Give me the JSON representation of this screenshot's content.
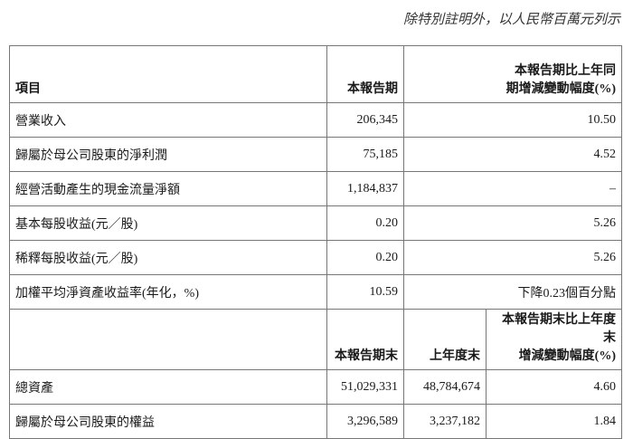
{
  "note": "除特別註明外，以人民幣百萬元列示",
  "header1": {
    "item": "項目",
    "current": "本報告期",
    "change": [
      "本報告期比上年同",
      "期增減變動幅度(%)"
    ]
  },
  "rows1": [
    {
      "item": "營業收入",
      "current": "206,345",
      "change": "10.50"
    },
    {
      "item": "歸屬於母公司股東的淨利潤",
      "current": "75,185",
      "change": "4.52"
    },
    {
      "item": "經營活動產生的現金流量淨額",
      "current": "1,184,837",
      "change": "–"
    },
    {
      "item": "基本每股收益(元／股)",
      "current": "0.20",
      "change": "5.26"
    },
    {
      "item": "稀釋每股收益(元／股)",
      "current": "0.20",
      "change": "5.26"
    },
    {
      "item": "加權平均淨資產收益率(年化，%)",
      "current": "10.59",
      "change": "下降0.23個百分點"
    }
  ],
  "header2": {
    "current": "本報告期末",
    "previous": "上年度末",
    "change": [
      "本報告期末比上年度末",
      "增減變動幅度(%)"
    ]
  },
  "rows2": [
    {
      "item": "總資產",
      "current": "51,029,331",
      "previous": "48,784,674",
      "change": "4.60"
    },
    {
      "item": "歸屬於母公司股東的權益",
      "current": "3,296,589",
      "previous": "3,237,182",
      "change": "1.84"
    }
  ]
}
